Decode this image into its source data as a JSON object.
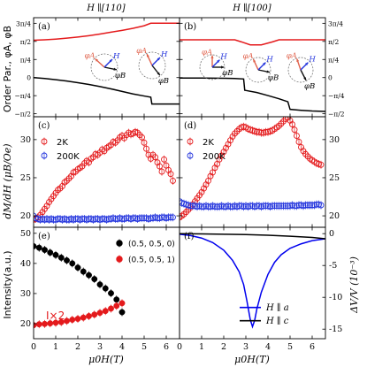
{
  "chart_data": [
    {
      "type": "line",
      "panel_label": "(a)",
      "title": "H ∥[110]",
      "ylabel": "Order Par., φA, φB",
      "xlim": [
        0,
        6.6
      ],
      "y_ticks": [
        "3π/4",
        "π/2",
        "π/4",
        "0",
        "−π/4",
        "−π/2"
      ],
      "ylim": [
        -1.7,
        2.6
      ],
      "series": [
        {
          "color": "#e41a1c",
          "x": [
            0,
            0.5,
            1,
            1.5,
            2,
            2.5,
            3,
            3.5,
            4,
            4.5,
            5,
            5.3,
            5.6,
            6.6
          ],
          "y": [
            1.62,
            1.64,
            1.67,
            1.71,
            1.76,
            1.82,
            1.89,
            1.97,
            2.05,
            2.14,
            2.25,
            2.36,
            2.36,
            2.36
          ]
        },
        {
          "color": "#000000",
          "x": [
            0,
            0.5,
            1,
            1.5,
            2,
            2.5,
            3,
            3.5,
            4,
            4.5,
            5,
            5.3,
            5.35,
            6.6
          ],
          "y": [
            0,
            -0.04,
            -0.09,
            -0.15,
            -0.22,
            -0.3,
            -0.39,
            -0.49,
            -0.6,
            -0.71,
            -0.8,
            -0.85,
            -1.15,
            -1.15
          ]
        }
      ],
      "annotations": [
        "φA",
        "H",
        "φB",
        "φA",
        "H",
        "φB"
      ]
    },
    {
      "type": "line",
      "panel_label": "(b)",
      "title": "H ∥[100]",
      "xlim": [
        0,
        6.6
      ],
      "y_ticks": [
        "3π/4",
        "π/2",
        "π/4",
        "0",
        "−π/4",
        "−π/2"
      ],
      "ylim": [
        -1.7,
        2.6
      ],
      "series": [
        {
          "color": "#e41a1c",
          "x": [
            0,
            2.5,
            2.8,
            3.2,
            3.7,
            4.2,
            4.5,
            6.6
          ],
          "y": [
            1.64,
            1.64,
            1.55,
            1.42,
            1.42,
            1.55,
            1.64,
            1.64
          ]
        },
        {
          "color": "#000000",
          "x": [
            0,
            1,
            2,
            2.5,
            2.9,
            2.95,
            3.5,
            4,
            4.5,
            4.9,
            5,
            5.5,
            6,
            6.6
          ],
          "y": [
            -0.02,
            -0.02,
            -0.03,
            -0.04,
            -0.06,
            -0.55,
            -0.65,
            -0.78,
            -0.92,
            -1.05,
            -1.38,
            -1.42,
            -1.45,
            -1.47
          ]
        }
      ],
      "annotations": [
        "φA",
        "H",
        "φB",
        "φA",
        "H",
        "φB",
        "φA",
        "H",
        "φB"
      ]
    },
    {
      "type": "scatter",
      "panel_label": "(c)",
      "ylabel": "dM/dH (μB/Oe)",
      "xlim": [
        0,
        6.6
      ],
      "ylim": [
        18.5,
        33
      ],
      "yticks": [
        20,
        25,
        30
      ],
      "legend": [
        "2K",
        "200K"
      ],
      "legend_position": "top-left",
      "series": [
        {
          "name": "2K",
          "color": "#e41a1c",
          "x": [
            0,
            0.1,
            0.2,
            0.3,
            0.4,
            0.5,
            0.6,
            0.7,
            0.8,
            0.9,
            1.0,
            1.1,
            1.2,
            1.3,
            1.4,
            1.5,
            1.6,
            1.7,
            1.8,
            1.9,
            2.0,
            2.1,
            2.2,
            2.3,
            2.4,
            2.5,
            2.6,
            2.7,
            2.8,
            2.9,
            3.0,
            3.1,
            3.2,
            3.3,
            3.4,
            3.5,
            3.6,
            3.7,
            3.8,
            3.9,
            4.0,
            4.1,
            4.2,
            4.3,
            4.4,
            4.5,
            4.6,
            4.7,
            4.8,
            4.9,
            5.0,
            5.1,
            5.2,
            5.3,
            5.4,
            5.5,
            5.6,
            5.7,
            5.8,
            5.9,
            6.0,
            6.1,
            6.2,
            6.3
          ],
          "y": [
            19.5,
            19.6,
            19.8,
            20.1,
            20.5,
            20.9,
            21.3,
            21.8,
            22.2,
            22.6,
            23.0,
            23.4,
            23.6,
            23.9,
            24.4,
            24.6,
            24.9,
            25.2,
            25.7,
            25.8,
            26.1,
            26.3,
            26.5,
            26.9,
            27.2,
            27.0,
            27.5,
            27.7,
            28.1,
            28.0,
            28.3,
            28.7,
            28.5,
            28.9,
            29.1,
            29.3,
            29.7,
            29.6,
            29.9,
            30.3,
            30.5,
            30.2,
            30.6,
            30.9,
            30.7,
            30.8,
            31.0,
            30.9,
            30.6,
            30.3,
            29.6,
            28.8,
            28.0,
            27.5,
            28.0,
            27.7,
            27.0,
            26.5,
            25.8,
            27.4,
            26.6,
            26.0,
            25.5,
            24.6
          ]
        },
        {
          "name": "200K",
          "color": "#2233dd",
          "x": [
            0,
            0.1,
            0.2,
            0.3,
            0.4,
            0.5,
            0.6,
            0.7,
            0.8,
            0.9,
            1.0,
            1.1,
            1.2,
            1.3,
            1.4,
            1.5,
            1.6,
            1.7,
            1.8,
            1.9,
            2.0,
            2.1,
            2.2,
            2.3,
            2.4,
            2.5,
            2.6,
            2.7,
            2.8,
            2.9,
            3.0,
            3.1,
            3.2,
            3.3,
            3.4,
            3.5,
            3.6,
            3.7,
            3.8,
            3.9,
            4.0,
            4.1,
            4.2,
            4.3,
            4.4,
            4.5,
            4.6,
            4.7,
            4.8,
            4.9,
            5.0,
            5.1,
            5.2,
            5.3,
            5.4,
            5.5,
            5.6,
            5.7,
            5.8,
            5.9,
            6.0,
            6.1,
            6.2,
            6.3
          ],
          "y": [
            20.0,
            19.7,
            19.6,
            19.5,
            19.6,
            19.5,
            19.6,
            19.5,
            19.6,
            19.5,
            19.5,
            19.6,
            19.6,
            19.5,
            19.6,
            19.5,
            19.5,
            19.6,
            19.5,
            19.6,
            19.6,
            19.5,
            19.6,
            19.6,
            19.5,
            19.6,
            19.6,
            19.5,
            19.6,
            19.6,
            19.5,
            19.6,
            19.6,
            19.5,
            19.6,
            19.6,
            19.7,
            19.6,
            19.6,
            19.7,
            19.6,
            19.6,
            19.7,
            19.7,
            19.6,
            19.7,
            19.7,
            19.6,
            19.7,
            19.7,
            19.7,
            19.7,
            19.6,
            19.7,
            19.7,
            19.8,
            19.7,
            19.7,
            19.8,
            19.8,
            19.7,
            19.8,
            19.8,
            19.8
          ]
        }
      ]
    },
    {
      "type": "scatter",
      "panel_label": "(d)",
      "xlim": [
        0,
        6.6
      ],
      "ylim": [
        18.5,
        33
      ],
      "yticks": [
        20,
        25,
        30
      ],
      "legend": [
        "2K",
        "200K"
      ],
      "legend_position": "top-left",
      "series": [
        {
          "name": "2K",
          "color": "#e41a1c",
          "x": [
            0,
            0.1,
            0.2,
            0.3,
            0.4,
            0.5,
            0.6,
            0.7,
            0.8,
            0.9,
            1.0,
            1.1,
            1.2,
            1.3,
            1.4,
            1.5,
            1.6,
            1.7,
            1.8,
            1.9,
            2.0,
            2.1,
            2.2,
            2.3,
            2.4,
            2.5,
            2.6,
            2.7,
            2.8,
            2.9,
            3.0,
            3.1,
            3.2,
            3.3,
            3.4,
            3.5,
            3.6,
            3.7,
            3.8,
            3.9,
            4.0,
            4.1,
            4.2,
            4.3,
            4.4,
            4.5,
            4.6,
            4.7,
            4.8,
            4.9,
            5.0,
            5.1,
            5.2,
            5.3,
            5.4,
            5.5,
            5.6,
            5.7,
            5.8,
            5.9,
            6.0,
            6.1,
            6.2,
            6.3,
            6.4
          ],
          "y": [
            19.8,
            20.0,
            20.2,
            20.5,
            20.8,
            21.1,
            21.5,
            21.9,
            22.3,
            22.7,
            23.1,
            23.6,
            24.1,
            24.6,
            25.2,
            25.7,
            26.3,
            26.8,
            27.4,
            27.9,
            28.4,
            28.9,
            29.4,
            29.9,
            30.4,
            30.8,
            31.1,
            31.4,
            31.6,
            31.7,
            31.6,
            31.4,
            31.3,
            31.2,
            31.1,
            31.0,
            31.0,
            30.9,
            30.9,
            31.0,
            31.0,
            31.1,
            31.2,
            31.4,
            31.6,
            31.8,
            32.1,
            32.4,
            32.7,
            32.9,
            32.5,
            32.0,
            31.3,
            30.5,
            29.7,
            29.0,
            28.5,
            28.1,
            27.8,
            27.5,
            27.3,
            27.1,
            26.9,
            26.8,
            26.7
          ]
        },
        {
          "name": "200K",
          "color": "#2233dd",
          "x": [
            0,
            0.1,
            0.2,
            0.3,
            0.4,
            0.5,
            0.6,
            0.7,
            0.8,
            0.9,
            1.0,
            1.1,
            1.2,
            1.3,
            1.4,
            1.5,
            1.6,
            1.7,
            1.8,
            1.9,
            2.0,
            2.1,
            2.2,
            2.3,
            2.4,
            2.5,
            2.6,
            2.7,
            2.8,
            2.9,
            3.0,
            3.1,
            3.2,
            3.3,
            3.4,
            3.5,
            3.6,
            3.7,
            3.8,
            3.9,
            4.0,
            4.1,
            4.2,
            4.3,
            4.4,
            4.5,
            4.6,
            4.7,
            4.8,
            4.9,
            5.0,
            5.1,
            5.2,
            5.3,
            5.4,
            5.5,
            5.6,
            5.7,
            5.8,
            5.9,
            6.0,
            6.1,
            6.2,
            6.3,
            6.4
          ],
          "y": [
            21.9,
            21.7,
            21.6,
            21.5,
            21.4,
            21.3,
            21.3,
            21.3,
            21.2,
            21.3,
            21.2,
            21.2,
            21.3,
            21.2,
            21.2,
            21.3,
            21.2,
            21.2,
            21.2,
            21.3,
            21.2,
            21.2,
            21.3,
            21.2,
            21.2,
            21.3,
            21.2,
            21.3,
            21.3,
            21.2,
            21.3,
            21.2,
            21.3,
            21.3,
            21.2,
            21.3,
            21.3,
            21.2,
            21.3,
            21.3,
            21.3,
            21.2,
            21.3,
            21.3,
            21.3,
            21.3,
            21.3,
            21.3,
            21.3,
            21.3,
            21.3,
            21.4,
            21.3,
            21.3,
            21.4,
            21.4,
            21.3,
            21.4,
            21.4,
            21.4,
            21.4,
            21.4,
            21.5,
            21.5,
            21.4
          ]
        }
      ]
    },
    {
      "type": "scatter",
      "panel_label": "(e)",
      "ylabel": "Intensity(a.u.)",
      "xlabel": "μ0H(T)",
      "xlim": [
        0,
        6.6
      ],
      "ylim": [
        15,
        52
      ],
      "yticks": [
        20,
        30,
        40,
        50
      ],
      "xticks": [
        0,
        1,
        2,
        3,
        4,
        5,
        6
      ],
      "legend": [
        "(0.5, 0.5, 0)",
        "(0.5, 0.5, 1)"
      ],
      "legend_position": "top-right",
      "annotations": [
        "I×2"
      ],
      "series": [
        {
          "name": "(0.5, 0.5, 0)",
          "color": "#000000",
          "x": [
            0,
            0.25,
            0.5,
            0.75,
            1.0,
            1.25,
            1.5,
            1.75,
            2.0,
            2.25,
            2.5,
            2.75,
            3.0,
            3.25,
            3.5,
            3.75,
            4.0
          ],
          "y": [
            45.7,
            45.2,
            44.5,
            43.6,
            42.8,
            41.9,
            41.0,
            40.0,
            38.6,
            37.3,
            36.1,
            34.8,
            33.0,
            31.7,
            30.1,
            28.0,
            23.8
          ]
        },
        {
          "name": "(0.5, 0.5, 1)",
          "color": "#e41a1c",
          "x": [
            0,
            0.25,
            0.5,
            0.75,
            1.0,
            1.25,
            1.5,
            1.75,
            2.0,
            2.25,
            2.5,
            2.75,
            3.0,
            3.25,
            3.5,
            3.75,
            4.0
          ],
          "y": [
            19.5,
            19.8,
            19.9,
            20.1,
            20.3,
            20.5,
            20.9,
            21.3,
            21.6,
            22.0,
            22.5,
            23.0,
            23.6,
            24.2,
            25.0,
            25.9,
            26.8
          ]
        }
      ]
    },
    {
      "type": "line",
      "panel_label": "(f)",
      "ylabel": "ΔV/V (10⁻³)",
      "xlabel": "μ0H(T)",
      "xlim": [
        0,
        6.6
      ],
      "ylim": [
        -16.5,
        1
      ],
      "yticks": [
        0,
        -5,
        -10,
        -15
      ],
      "xticks": [
        0,
        1,
        2,
        3,
        4,
        5,
        6
      ],
      "legend": [
        "H ∥ a",
        "H ∥ c"
      ],
      "legend_position": "bottom-right",
      "series": [
        {
          "name": "H ∥ a",
          "color": "#0000ee",
          "x": [
            0,
            0.5,
            1.0,
            1.5,
            2.0,
            2.4,
            2.7,
            2.9,
            3.05,
            3.2,
            3.3,
            3.4,
            3.5,
            3.7,
            4.0,
            4.3,
            4.6,
            5.0,
            5.5,
            6.0,
            6.6
          ],
          "y": [
            -0.1,
            -0.3,
            -0.7,
            -1.4,
            -2.6,
            -4.2,
            -6.0,
            -8.0,
            -10.6,
            -13.5,
            -14.6,
            -13.6,
            -11.8,
            -9.2,
            -6.4,
            -4.5,
            -3.3,
            -2.3,
            -1.6,
            -1.1,
            -0.8
          ]
        },
        {
          "name": "H ∥ c",
          "color": "#000000",
          "x": [
            0,
            1,
            2,
            3,
            4,
            5,
            6,
            6.6
          ],
          "y": [
            0.0,
            -0.05,
            -0.1,
            -0.15,
            -0.25,
            -0.4,
            -0.6,
            -0.8
          ]
        }
      ]
    }
  ],
  "common": {
    "xtick_labels": [
      "0",
      "1",
      "2",
      "3",
      "4",
      "5",
      "6"
    ]
  }
}
